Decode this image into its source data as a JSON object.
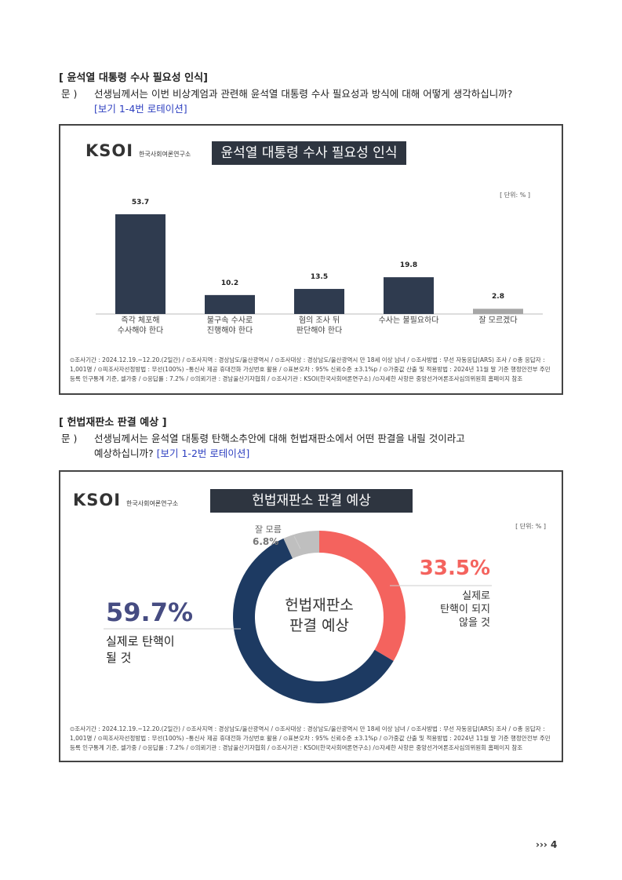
{
  "sections": [
    {
      "heading": "[ 윤석열 대통령 수사 필요성 인식]",
      "question_label": "문 )",
      "question": [
        "선생님께서는 이번 비상계엄과 관련해 윤석열 대통령 수사 필요성과 방식에 대해 어떻게 생각하십니까?"
      ],
      "rotation": "[보기 1-4번 로테이션]"
    },
    {
      "heading": "[ 헌법재판소 판결 예상 ]",
      "question_label": "문 )",
      "question": [
        "선생님께서는 윤석열 대통령 탄핵소추안에 대해 헌법재판소에서 어떤 판결을 내릴 것이라고",
        "예상하십니까?"
      ],
      "rotation": "[보기 1-2번 로테이션]"
    }
  ],
  "chart_data": [
    {
      "type": "bar",
      "logo": "KSOI",
      "logo_subtitle": "한국사회여론연구소",
      "title": "윤석열 대통령 수사 필요성 인식",
      "unit": "[ 단위: % ]",
      "categories": [
        "즉각 체포해\n수사해야 한다",
        "불구속 수사로\n진행해야 한다",
        "혐의 조사 뒤\n판단해야 한다",
        "수사는 불필요하다",
        "잘 모르겠다"
      ],
      "values": [
        53.7,
        10.2,
        13.5,
        19.8,
        2.8
      ],
      "colors": [
        "#2f3b4f",
        "#2f3b4f",
        "#2f3b4f",
        "#2f3b4f",
        "#a6a6a6"
      ],
      "ylim": [
        0,
        60
      ],
      "note": "⊙조사기간 : 2024.12.19.~12.20.(2일간) / ⊙조사지역 : 경상남도/울산광역시 / ⊙조사대상 : 경상남도/울산광역시 만 18세 이상 남녀 / ⊙조사방법 : 무선 자동응답(ARS) 조사 / ⊙총 응답자 : 1,001명 / ⊙피조사자선정방법 : 무선(100%) –통신사 제공 휴대전화 가상번호 활용 / ⊙표본오차 : 95% 신뢰수준 ±3.1%p / ⊙가중값 산출 및 적용방법 : 2024년 11월 말 기준 행정안전부 주민등록 인구통계 기준, 셀가중 / ⊙응답률 : 7.2% / ⊙의뢰기관 : 경남울산기자협회 / ⊙조사기관 : KSOI(한국사회여론연구소) /⊙자세한 사항은 중앙선거여론조사심의위원회 홈페이지 참조"
    },
    {
      "type": "donut",
      "logo": "KSOI",
      "logo_subtitle": "한국사회여론연구소",
      "title": "헌법재판소 판결 예상",
      "unit": "[ 단위: % ]",
      "center_label": "헌법재판소\n판결 예상",
      "categories": [
        "실제로\n탄핵이 되지\n않을 것",
        "실제로 탄핵이\n될 것",
        "잘 모름"
      ],
      "values": [
        33.5,
        59.7,
        6.8
      ],
      "value_labels": [
        "33.5%",
        "59.7%",
        "6.8%"
      ],
      "colors": [
        "#f4635e",
        "#1d3a62",
        "#bfbfbf"
      ],
      "note": "⊙조사기간 : 2024.12.19.~12.20.(2일간) / ⊙조사지역 : 경상남도/울산광역시 / ⊙조사대상 : 경상남도/울산광역시 만 18세 이상 남녀 / ⊙조사방법 : 무선 자동응답(ARS) 조사 / ⊙총 응답자 : 1,001명 / ⊙피조사자선정방법 : 무선(100%) –통신사 제공 휴대전화 가상번호 활용 / ⊙표본오차 : 95% 신뢰수준 ±3.1%p / ⊙가중값 산출 및 적용방법 : 2024년 11월 말 기준 행정안전부 주민등록 인구통계 기준, 셀가중 / ⊙응답률 : 7.2% / ⊙의뢰기관 : 경남울산기자협회 / ⊙조사기관 : KSOI(한국사회여론연구소) /⊙자세한 사항은 중앙선거여론조사심의위원회 홈페이지 참조"
    }
  ],
  "page_marker": "›››",
  "page_number": "4"
}
